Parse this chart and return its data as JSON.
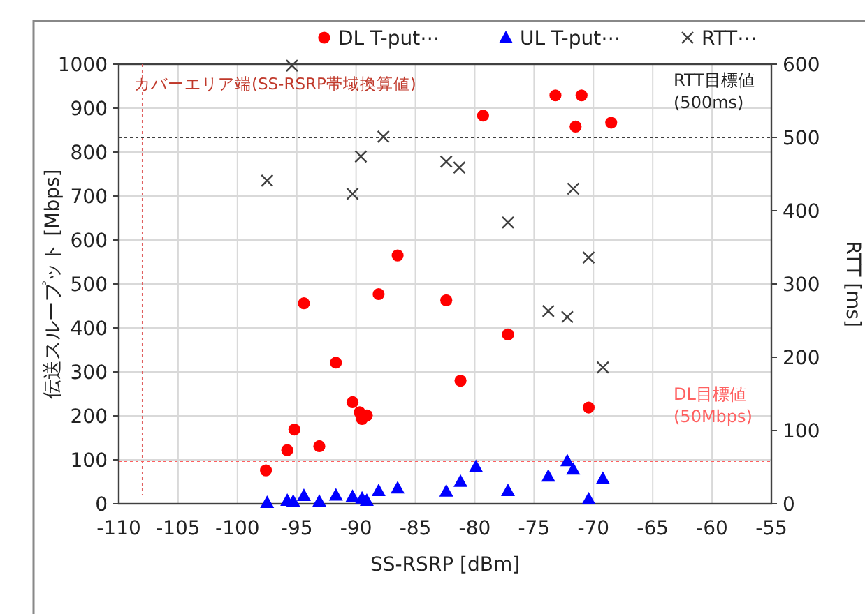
{
  "chart_data": {
    "type": "scatter",
    "xlabel": "SS-RSRP [dBm]",
    "ylabel": "伝送スループット [Mbps]",
    "y2label": "RTT [ms]",
    "xlim": [
      -110,
      -55
    ],
    "xticks": [
      -110,
      -105,
      -100,
      -95,
      -90,
      -85,
      -80,
      -75,
      -70,
      -65,
      -60,
      -55
    ],
    "ylim": [
      0,
      1000
    ],
    "yticks": [
      0,
      100,
      200,
      300,
      400,
      500,
      600,
      700,
      800,
      900,
      1000
    ],
    "y2lim": [
      0,
      600
    ],
    "y2ticks": [
      0,
      100,
      200,
      300,
      400,
      500,
      600
    ],
    "grid": true,
    "legend": "top",
    "series": [
      {
        "name": "DL T-put⋯",
        "color": "#ff0000",
        "marker": "circle",
        "x": [
          -97.6,
          -95.8,
          -95.2,
          -94.4,
          -93.1,
          -91.7,
          -90.3,
          -89.7,
          -89.5,
          -89.1,
          -88.1,
          -86.5,
          -82.4,
          -81.2,
          -77.2,
          -79.3,
          -73.2,
          -71.0,
          -71.5,
          -68.5,
          -70.4
        ],
        "values": [
          76,
          122,
          169,
          456,
          131,
          321,
          231,
          208,
          193,
          201,
          477,
          565,
          463,
          280,
          385,
          883,
          929,
          929,
          858,
          867,
          219
        ]
      },
      {
        "name": "UL T-put⋯",
        "color": "#0000ff",
        "marker": "triangle",
        "x": [
          -97.5,
          -95.8,
          -95.3,
          -94.4,
          -93.1,
          -91.7,
          -90.3,
          -89.5,
          -89.1,
          -88.1,
          -86.5,
          -82.4,
          -81.2,
          -79.9,
          -77.2,
          -73.8,
          -72.2,
          -71.7,
          -70.4,
          -69.2
        ],
        "values": [
          3,
          8,
          6,
          19,
          6,
          20,
          17,
          13,
          8,
          30,
          36,
          29,
          51,
          85,
          30,
          63,
          98,
          79,
          11,
          58
        ]
      },
      {
        "name": "RTT⋯",
        "color": "#404040",
        "marker": "cross",
        "axis": "y2",
        "x": [
          -97.5,
          -95.4,
          -90.3,
          -89.6,
          -87.7,
          -82.4,
          -81.3,
          -77.2,
          -71.7,
          -70.4,
          -73.8,
          -72.2,
          -69.2
        ],
        "values": [
          441,
          598,
          423,
          474,
          501,
          467,
          459,
          384,
          430,
          336,
          263,
          255,
          186
        ]
      }
    ],
    "ref_lines": [
      {
        "axis": "x",
        "value": -108,
        "label": "カバーエリア端(SS-RSRP帯域換算値)",
        "color": "#e06060",
        "line_style": "dotted"
      },
      {
        "axis": "y",
        "value": 97,
        "label": "DL目標値 (50Mbps)",
        "color": "#ff6060",
        "line_style": "dotted"
      },
      {
        "axis": "y2",
        "value": 500,
        "label": "RTT目標値 (500ms)",
        "color": "#404040",
        "line_style": "dotted"
      }
    ]
  }
}
